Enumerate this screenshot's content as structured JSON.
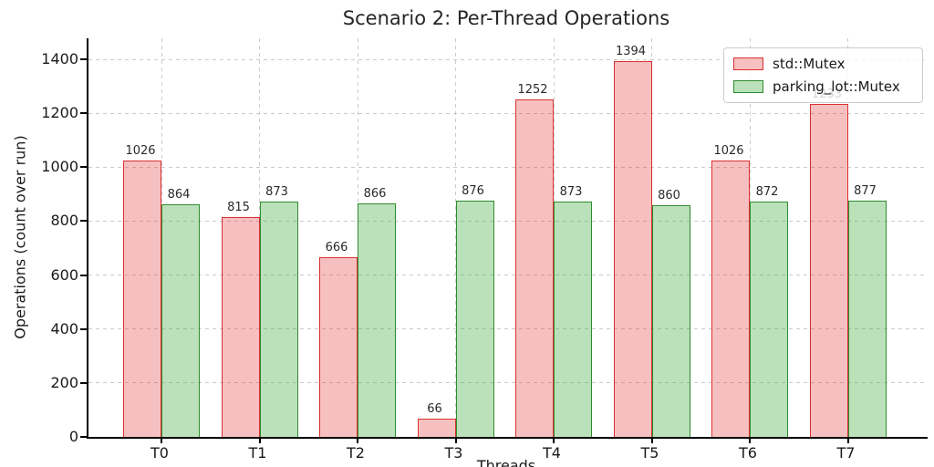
{
  "chart_data": {
    "type": "bar",
    "title": "Scenario 2: Per-Thread Operations",
    "xlabel": "Threads",
    "ylabel": "Operations (count over run)",
    "categories": [
      "T0",
      "T1",
      "T2",
      "T3",
      "T4",
      "T5",
      "T6",
      "T7"
    ],
    "series": [
      {
        "name": "std::Mutex",
        "values": [
          1026,
          815,
          666,
          66,
          1252,
          1394,
          1026,
          1233
        ],
        "fill": "rgba(224,48,48,0.3)",
        "edge": "#d93030"
      },
      {
        "name": "parking_lot::Mutex",
        "values": [
          864,
          873,
          866,
          876,
          873,
          860,
          872,
          877
        ],
        "fill": "rgba(60,170,60,0.35)",
        "edge": "#2e8b2e"
      }
    ],
    "ylim": [
      0,
      1480
    ],
    "yticks": [
      0,
      200,
      400,
      600,
      800,
      1000,
      1200,
      1400
    ],
    "grid": "dashed-both",
    "gridline_color": "#cbcbcb",
    "axis_color": "#000000",
    "legend_position": "upper-right",
    "value_labels": true,
    "note_obscured_label": "1233"
  }
}
